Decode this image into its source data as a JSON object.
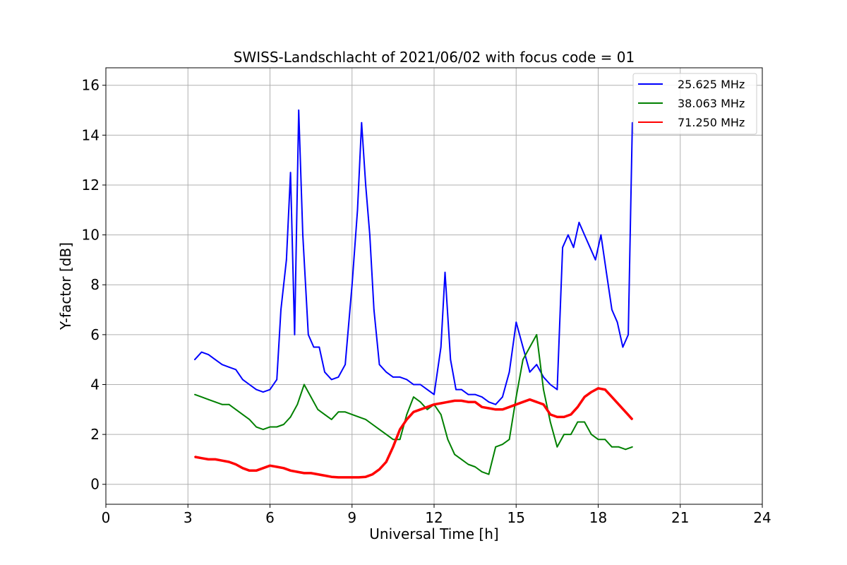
{
  "chart_data": {
    "type": "line",
    "title": "SWISS-Landschlacht of 2021/06/02 with focus code = 01",
    "xlabel": "Universal Time [h]",
    "ylabel": "Y-factor [dB]",
    "xlim": [
      0,
      24
    ],
    "ylim": [
      -0.8,
      16.7
    ],
    "xticks": [
      0,
      3,
      6,
      9,
      12,
      15,
      18,
      21,
      24
    ],
    "yticks": [
      0,
      2,
      4,
      6,
      8,
      10,
      12,
      14,
      16
    ],
    "grid": true,
    "legend_position": "top-right",
    "series": [
      {
        "name": "25.625 MHz",
        "color": "#0000ff",
        "x": [
          3.25,
          3.5,
          3.75,
          4.0,
          4.25,
          4.5,
          4.75,
          5.0,
          5.25,
          5.5,
          5.75,
          6.0,
          6.25,
          6.4,
          6.6,
          6.75,
          6.9,
          7.05,
          7.2,
          7.4,
          7.6,
          7.8,
          8.0,
          8.25,
          8.5,
          8.75,
          9.0,
          9.2,
          9.35,
          9.5,
          9.65,
          9.8,
          10.0,
          10.25,
          10.5,
          10.75,
          11.0,
          11.25,
          11.5,
          11.75,
          12.0,
          12.25,
          12.4,
          12.6,
          12.8,
          13.0,
          13.25,
          13.5,
          13.75,
          14.0,
          14.25,
          14.5,
          14.75,
          15.0,
          15.25,
          15.5,
          15.75,
          16.0,
          16.25,
          16.5,
          16.7,
          16.9,
          17.1,
          17.3,
          17.5,
          17.7,
          17.9,
          18.1,
          18.3,
          18.5,
          18.7,
          18.9,
          19.1,
          19.25
        ],
        "values": [
          5.0,
          5.3,
          5.2,
          5.0,
          4.8,
          4.7,
          4.6,
          4.2,
          4.0,
          3.8,
          3.7,
          3.8,
          4.2,
          7.0,
          9.0,
          12.5,
          6.0,
          15.0,
          10.0,
          6.0,
          5.5,
          5.5,
          4.5,
          4.2,
          4.3,
          4.8,
          8.0,
          11.0,
          14.5,
          12.0,
          10.0,
          7.0,
          4.8,
          4.5,
          4.3,
          4.3,
          4.2,
          4.0,
          4.0,
          3.8,
          3.6,
          5.5,
          8.5,
          5.0,
          3.8,
          3.8,
          3.6,
          3.6,
          3.5,
          3.3,
          3.2,
          3.5,
          4.5,
          6.5,
          5.5,
          4.5,
          4.8,
          4.3,
          4.0,
          3.8,
          9.5,
          10.0,
          9.5,
          10.5,
          10.0,
          9.5,
          9.0,
          10.0,
          8.5,
          7.0,
          6.5,
          5.5,
          6.0,
          14.5
        ]
      },
      {
        "name": "38.063 MHz",
        "color": "#008000",
        "x": [
          3.25,
          3.5,
          3.75,
          4.0,
          4.25,
          4.5,
          4.75,
          5.0,
          5.25,
          5.5,
          5.75,
          6.0,
          6.25,
          6.5,
          6.75,
          7.0,
          7.25,
          7.5,
          7.75,
          8.0,
          8.25,
          8.5,
          8.75,
          9.0,
          9.25,
          9.5,
          9.75,
          10.0,
          10.25,
          10.5,
          10.75,
          11.0,
          11.25,
          11.5,
          11.75,
          12.0,
          12.25,
          12.5,
          12.75,
          13.0,
          13.25,
          13.5,
          13.75,
          14.0,
          14.25,
          14.5,
          14.75,
          15.0,
          15.25,
          15.5,
          15.75,
          16.0,
          16.25,
          16.5,
          16.75,
          17.0,
          17.25,
          17.5,
          17.75,
          18.0,
          18.25,
          18.5,
          18.75,
          19.0,
          19.25
        ],
        "values": [
          3.6,
          3.5,
          3.4,
          3.3,
          3.2,
          3.2,
          3.0,
          2.8,
          2.6,
          2.3,
          2.2,
          2.3,
          2.3,
          2.4,
          2.7,
          3.2,
          4.0,
          3.5,
          3.0,
          2.8,
          2.6,
          2.9,
          2.9,
          2.8,
          2.7,
          2.6,
          2.4,
          2.2,
          2.0,
          1.8,
          1.8,
          2.8,
          3.5,
          3.3,
          3.0,
          3.2,
          2.8,
          1.8,
          1.2,
          1.0,
          0.8,
          0.7,
          0.5,
          0.4,
          1.5,
          1.6,
          1.8,
          3.5,
          5.0,
          5.5,
          6.0,
          3.8,
          2.5,
          1.5,
          2.0,
          2.0,
          2.5,
          2.5,
          2.0,
          1.8,
          1.8,
          1.5,
          1.5,
          1.4,
          1.5
        ]
      },
      {
        "name": "71.250 MHz",
        "color": "#ff0000",
        "x": [
          3.25,
          3.5,
          3.75,
          4.0,
          4.25,
          4.5,
          4.75,
          5.0,
          5.25,
          5.5,
          5.75,
          6.0,
          6.25,
          6.5,
          6.75,
          7.0,
          7.25,
          7.5,
          7.75,
          8.0,
          8.25,
          8.5,
          8.75,
          9.0,
          9.25,
          9.5,
          9.75,
          10.0,
          10.25,
          10.5,
          10.75,
          11.0,
          11.25,
          11.5,
          11.75,
          12.0,
          12.25,
          12.5,
          12.75,
          13.0,
          13.25,
          13.5,
          13.75,
          14.0,
          14.25,
          14.5,
          14.75,
          15.0,
          15.25,
          15.5,
          15.75,
          16.0,
          16.25,
          16.5,
          16.75,
          17.0,
          17.25,
          17.5,
          17.75,
          18.0,
          18.25,
          18.5,
          18.75,
          19.0,
          19.25
        ],
        "values": [
          1.1,
          1.05,
          1.0,
          1.0,
          0.95,
          0.9,
          0.8,
          0.65,
          0.55,
          0.55,
          0.65,
          0.75,
          0.7,
          0.65,
          0.55,
          0.5,
          0.45,
          0.45,
          0.4,
          0.35,
          0.3,
          0.28,
          0.28,
          0.28,
          0.28,
          0.3,
          0.4,
          0.6,
          0.9,
          1.5,
          2.2,
          2.6,
          2.9,
          3.0,
          3.1,
          3.2,
          3.25,
          3.3,
          3.35,
          3.35,
          3.3,
          3.3,
          3.1,
          3.05,
          3.0,
          3.0,
          3.1,
          3.2,
          3.3,
          3.4,
          3.3,
          3.2,
          2.8,
          2.7,
          2.7,
          2.8,
          3.1,
          3.5,
          3.7,
          3.85,
          3.8,
          3.5,
          3.2,
          2.9,
          2.6
        ]
      }
    ]
  }
}
